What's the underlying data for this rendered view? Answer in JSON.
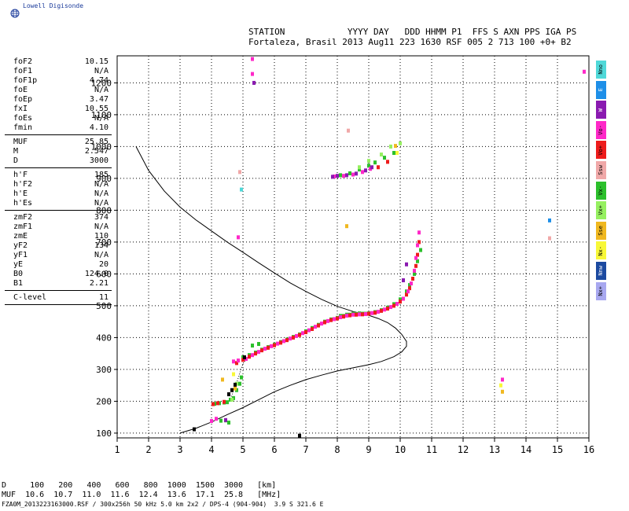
{
  "brand": {
    "logo_text": "Lowell Digisonde"
  },
  "header": {
    "line1": "STATION            YYYY DAY   DDD HHMM P1  FFS S AXN PPS IGA PS",
    "line2": "Fortaleza, Brasil 2013 Aug11 223 1630 RSF 005 2 713 100 +0+ B2"
  },
  "params": [
    [
      {
        "label": "foF2",
        "value": "10.15"
      },
      {
        "label": "foF1",
        "value": "N/A"
      },
      {
        "label": "foF1p",
        "value": "4.74"
      },
      {
        "label": "foE",
        "value": "N/A"
      },
      {
        "label": "foEp",
        "value": "3.47"
      },
      {
        "label": "fxI",
        "value": "10.55"
      },
      {
        "label": "foEs",
        "value": "N/A"
      },
      {
        "label": "fmin",
        "value": "4.10"
      }
    ],
    [
      {
        "label": "MUF",
        "value": "25.85"
      },
      {
        "label": "M",
        "value": "2.547"
      },
      {
        "label": "D",
        "value": "3000"
      }
    ],
    [
      {
        "label": "h'F",
        "value": "185"
      },
      {
        "label": "h'F2",
        "value": "N/A"
      },
      {
        "label": "h'E",
        "value": "N/A"
      },
      {
        "label": "h'Es",
        "value": "N/A"
      }
    ],
    [
      {
        "label": "zmF2",
        "value": "374"
      },
      {
        "label": "zmF1",
        "value": "N/A"
      },
      {
        "label": "zmE",
        "value": "110"
      },
      {
        "label": "yF2",
        "value": "134"
      },
      {
        "label": "yF1",
        "value": "N/A"
      },
      {
        "label": "yE",
        "value": "20"
      },
      {
        "label": "B0",
        "value": "124.0"
      },
      {
        "label": "B1",
        "value": "2.21"
      }
    ],
    [
      {
        "label": "C-level",
        "value": "11"
      }
    ]
  ],
  "legend": [
    {
      "label": "Nno",
      "color": "#4fd8d8"
    },
    {
      "label": "E",
      "color": "#1e8fe8"
    },
    {
      "label": "W",
      "color": "#8a1ab0"
    },
    {
      "label": "Vo-",
      "color": "#ff28c8"
    },
    {
      "label": "Vo+",
      "color": "#ee1c1c"
    },
    {
      "label": "Ssw",
      "color": "#f0a8a8"
    },
    {
      "label": "Vx-",
      "color": "#2cc02c"
    },
    {
      "label": "Vx+",
      "color": "#96f060"
    },
    {
      "label": "Sse",
      "color": "#f0b820"
    },
    {
      "label": "Nx-",
      "color": "#f8f838"
    },
    {
      "label": "Nnw",
      "color": "#1c4aa0"
    },
    {
      "label": "Nx+",
      "color": "#a8a8f0"
    }
  ],
  "footer": {
    "line1": "D     100   200   400   600   800  1000  1500  3000   [km]",
    "line2": "MUF  10.6  10.7  11.0  11.6  12.4  13.6  17.1  25.8   [MHz]",
    "file_line": "FZA0M_2013223163000.RSF / 300x256h 50 kHz 5.0 km 2x2 / DPS-4 (904-904)  3.9 S 321.6 E"
  },
  "chart_data": {
    "type": "scatter",
    "xlim": [
      1,
      16
    ],
    "ylim": [
      85,
      1285
    ],
    "x_ticks": [
      "1",
      "2",
      "3",
      "4",
      "5",
      "6",
      "7",
      "8",
      "9",
      "10",
      "11",
      "12",
      "13",
      "14",
      "15",
      "16"
    ],
    "y_ticks": [
      "100",
      "200",
      "300",
      "400",
      "500",
      "600",
      "700",
      "800",
      "900",
      "1000",
      "1100",
      "1200"
    ],
    "grid": true,
    "series": [
      {
        "color": "#2cc02c",
        "points": [
          [
            4.3,
            139
          ],
          [
            4.45,
            140
          ],
          [
            4.55,
            133
          ],
          [
            4.1,
            192
          ],
          [
            4.25,
            194
          ],
          [
            4.4,
            196
          ],
          [
            4.5,
            197
          ],
          [
            4.6,
            205
          ],
          [
            4.7,
            210
          ],
          [
            4.8,
            235
          ],
          [
            4.9,
            255
          ],
          [
            4.95,
            275
          ],
          [
            5.0,
            338
          ],
          [
            5.2,
            345
          ],
          [
            5.4,
            353
          ],
          [
            5.6,
            362
          ],
          [
            5.8,
            370
          ],
          [
            6.0,
            378
          ],
          [
            6.2,
            386
          ],
          [
            6.4,
            394
          ],
          [
            6.6,
            402
          ],
          [
            6.8,
            410
          ],
          [
            7.0,
            420
          ],
          [
            7.2,
            430
          ],
          [
            7.4,
            440
          ],
          [
            7.6,
            450
          ],
          [
            7.8,
            457
          ],
          [
            8.0,
            462
          ],
          [
            8.2,
            468
          ],
          [
            8.4,
            472
          ],
          [
            8.6,
            474
          ],
          [
            8.8,
            475
          ],
          [
            9.0,
            476
          ],
          [
            9.2,
            480
          ],
          [
            9.4,
            486
          ],
          [
            9.6,
            494
          ],
          [
            9.8,
            505
          ],
          [
            10.0,
            520
          ],
          [
            10.2,
            545
          ],
          [
            10.3,
            565
          ],
          [
            10.45,
            600
          ],
          [
            10.55,
            640
          ],
          [
            10.65,
            675
          ],
          [
            5.3,
            375
          ],
          [
            5.5,
            380
          ],
          [
            8.1,
            468
          ],
          [
            8.3,
            472
          ],
          [
            8.5,
            475
          ],
          [
            8.7,
            476
          ],
          [
            8.9,
            475
          ],
          [
            8.1,
            910
          ],
          [
            8.4,
            916
          ],
          [
            8.7,
            928
          ],
          [
            9.0,
            940
          ],
          [
            9.2,
            950
          ],
          [
            9.5,
            965
          ],
          [
            9.8,
            980
          ]
        ]
      },
      {
        "color": "#ee1c1c",
        "points": [
          [
            4.05,
            191
          ],
          [
            4.2,
            194
          ],
          [
            4.4,
            198
          ],
          [
            4.8,
            320
          ],
          [
            5.0,
            330
          ],
          [
            5.2,
            340
          ],
          [
            5.4,
            350
          ],
          [
            5.6,
            360
          ],
          [
            5.8,
            368
          ],
          [
            6.0,
            376
          ],
          [
            6.2,
            384
          ],
          [
            6.4,
            392
          ],
          [
            6.6,
            400
          ],
          [
            6.8,
            408
          ],
          [
            7.0,
            417
          ],
          [
            7.2,
            427
          ],
          [
            7.4,
            438
          ],
          [
            7.6,
            448
          ],
          [
            7.8,
            455
          ],
          [
            8.0,
            460
          ],
          [
            8.2,
            466
          ],
          [
            8.4,
            470
          ],
          [
            8.6,
            472
          ],
          [
            8.8,
            473
          ],
          [
            9.0,
            475
          ],
          [
            9.2,
            478
          ],
          [
            9.4,
            484
          ],
          [
            9.6,
            491
          ],
          [
            9.8,
            500
          ],
          [
            10.0,
            513
          ],
          [
            10.2,
            535
          ],
          [
            10.3,
            555
          ],
          [
            10.4,
            585
          ],
          [
            10.5,
            625
          ],
          [
            10.55,
            660
          ],
          [
            10.6,
            700
          ],
          [
            9.3,
            935
          ],
          [
            9.6,
            952
          ]
        ]
      },
      {
        "color": "#ff28c8",
        "points": [
          [
            4.0,
            138
          ],
          [
            4.15,
            145
          ],
          [
            4.7,
            325
          ],
          [
            4.85,
            328
          ],
          [
            5.1,
            333
          ],
          [
            5.3,
            345
          ],
          [
            5.5,
            355
          ],
          [
            5.7,
            365
          ],
          [
            5.9,
            373
          ],
          [
            6.1,
            381
          ],
          [
            6.3,
            389
          ],
          [
            6.5,
            397
          ],
          [
            6.7,
            405
          ],
          [
            6.9,
            414
          ],
          [
            7.1,
            423
          ],
          [
            7.3,
            434
          ],
          [
            7.5,
            444
          ],
          [
            7.7,
            452
          ],
          [
            7.9,
            458
          ],
          [
            8.1,
            464
          ],
          [
            8.3,
            469
          ],
          [
            8.5,
            472
          ],
          [
            8.7,
            473
          ],
          [
            8.9,
            474
          ],
          [
            9.1,
            477
          ],
          [
            9.3,
            481
          ],
          [
            9.5,
            488
          ],
          [
            9.7,
            496
          ],
          [
            9.9,
            506
          ],
          [
            10.1,
            522
          ],
          [
            10.25,
            545
          ],
          [
            10.35,
            570
          ],
          [
            10.45,
            610
          ],
          [
            10.5,
            650
          ],
          [
            10.55,
            690
          ],
          [
            10.6,
            730
          ],
          [
            4.85,
            715
          ],
          [
            5.3,
            1275
          ],
          [
            5.3,
            1228
          ],
          [
            7.9,
            906
          ],
          [
            8.2,
            908
          ],
          [
            8.5,
            912
          ],
          [
            8.8,
            920
          ],
          [
            9.05,
            930
          ],
          [
            13.25,
            268
          ],
          [
            15.85,
            1235
          ]
        ]
      },
      {
        "color": "#8a1ab0",
        "points": [
          [
            5.35,
            1200
          ],
          [
            7.85,
            905
          ],
          [
            8.0,
            908
          ],
          [
            8.3,
            910
          ],
          [
            8.6,
            915
          ],
          [
            8.9,
            925
          ],
          [
            9.1,
            935
          ],
          [
            10.1,
            580
          ],
          [
            10.2,
            630
          ],
          [
            4.45,
            141
          ]
        ]
      },
      {
        "color": "#96f060",
        "points": [
          [
            4.65,
            205
          ],
          [
            4.8,
            255
          ],
          [
            8.7,
            935
          ],
          [
            9.0,
            955
          ],
          [
            9.4,
            975
          ],
          [
            9.7,
            1000
          ],
          [
            10.0,
            1010
          ]
        ]
      },
      {
        "color": "#f0b820",
        "points": [
          [
            13.25,
            230
          ],
          [
            8.3,
            750
          ],
          [
            9.85,
            1002
          ],
          [
            4.35,
            268
          ],
          [
            4.75,
            240
          ]
        ]
      },
      {
        "color": "#f8f838",
        "points": [
          [
            9.9,
            980
          ],
          [
            4.7,
            285
          ],
          [
            13.2,
            250
          ]
        ]
      },
      {
        "color": "#f0a8a8",
        "points": [
          [
            14.75,
            712
          ],
          [
            8.35,
            1050
          ],
          [
            4.9,
            920
          ]
        ]
      },
      {
        "color": "#1e8fe8",
        "points": [
          [
            14.75,
            768
          ]
        ]
      },
      {
        "color": "#4fd8d8",
        "points": [
          [
            4.95,
            865
          ]
        ]
      },
      {
        "color": "#000000",
        "points": [
          [
            3.45,
            112
          ],
          [
            4.75,
            252
          ],
          [
            4.65,
            235
          ],
          [
            4.55,
            222
          ],
          [
            5.05,
            338
          ],
          [
            6.8,
            92
          ]
        ]
      }
    ],
    "profile_curve": [
      [
        1.6,
        1000
      ],
      [
        2.0,
        925
      ],
      [
        2.5,
        860
      ],
      [
        3.0,
        810
      ],
      [
        3.5,
        770
      ],
      [
        4.0,
        735
      ],
      [
        4.5,
        700
      ],
      [
        5.0,
        668
      ],
      [
        5.5,
        635
      ],
      [
        6.0,
        603
      ],
      [
        6.5,
        572
      ],
      [
        7.0,
        545
      ],
      [
        7.5,
        520
      ],
      [
        8.0,
        498
      ],
      [
        8.5,
        482
      ],
      [
        9.0,
        470
      ],
      [
        9.3,
        460
      ],
      [
        9.6,
        447
      ],
      [
        9.85,
        430
      ],
      [
        10.05,
        410
      ],
      [
        10.2,
        388
      ],
      [
        10.2,
        373
      ],
      [
        10.05,
        355
      ],
      [
        9.8,
        340
      ],
      [
        9.4,
        325
      ],
      [
        9.0,
        315
      ],
      [
        8.5,
        305
      ],
      [
        8.0,
        295
      ],
      [
        7.5,
        282
      ],
      [
        7.0,
        268
      ],
      [
        6.5,
        250
      ],
      [
        6.0,
        230
      ],
      [
        5.5,
        205
      ],
      [
        5.0,
        180
      ],
      [
        4.5,
        158
      ],
      [
        4.0,
        135
      ],
      [
        3.5,
        115
      ],
      [
        3.0,
        100
      ]
    ],
    "trace_line": [
      [
        4.6,
        208
      ],
      [
        4.8,
        258
      ],
      [
        5.0,
        318
      ],
      [
        5.15,
        338
      ]
    ]
  }
}
